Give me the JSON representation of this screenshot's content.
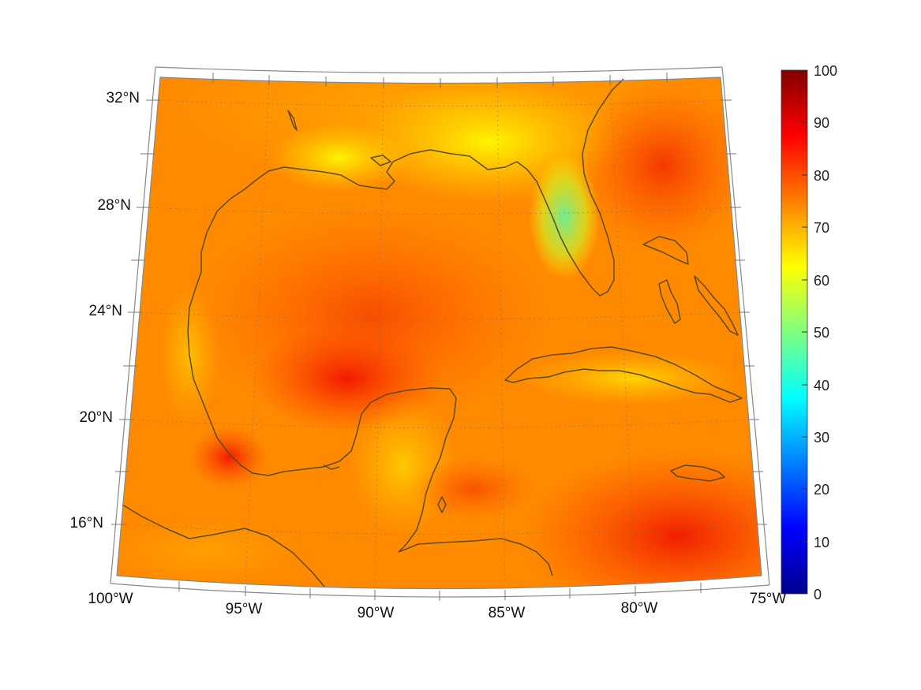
{
  "map": {
    "lat_labels": [
      "32°N",
      "28°N",
      "24°N",
      "20°N",
      "16°N"
    ],
    "lon_labels": [
      "100°W",
      "95°W",
      "90°W",
      "85°W",
      "80°W",
      "75°W"
    ],
    "extent": {
      "lon_min": -100,
      "lon_max": -75,
      "lat_min": 14,
      "lat_max": 33
    },
    "projection": "conic",
    "gridlines": "dotted",
    "field_colormap": "jet",
    "field_dominant_range": [
      60,
      90
    ]
  },
  "colorbar": {
    "ticks": [
      "100",
      "90",
      "80",
      "70",
      "60",
      "50",
      "40",
      "30",
      "20",
      "10",
      "0"
    ],
    "range": [
      0,
      100
    ],
    "colormap": "jet"
  },
  "colors": {
    "coastline": "#5a4a1e",
    "frame": "#888888"
  }
}
